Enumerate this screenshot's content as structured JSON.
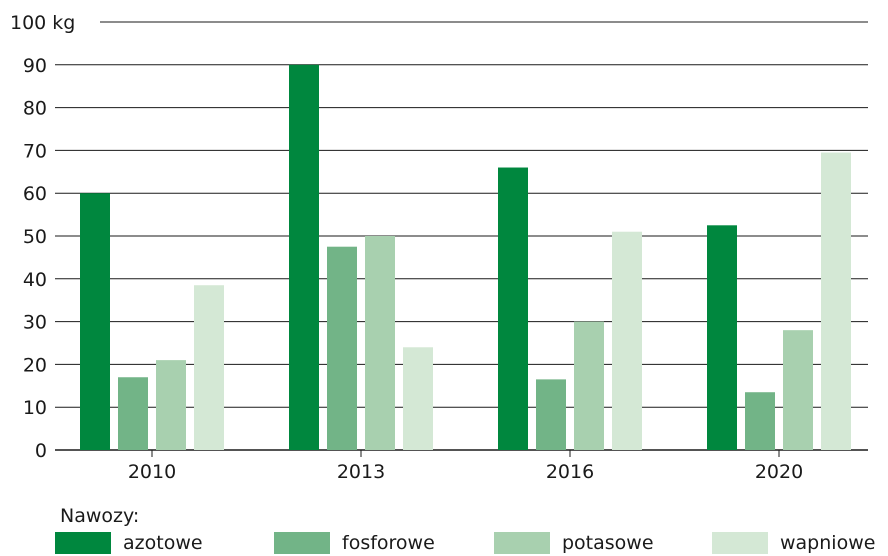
{
  "chart_data": {
    "type": "bar",
    "categories": [
      "2010",
      "2013",
      "2016",
      "2020"
    ],
    "series": [
      {
        "name": "azotowe",
        "color": "#00873e",
        "values": [
          60,
          90,
          66,
          52.5
        ]
      },
      {
        "name": "fosforowe",
        "color": "#72b487",
        "values": [
          17,
          47.5,
          16.5,
          13.5
        ]
      },
      {
        "name": "potasowe",
        "color": "#a8d0af",
        "values": [
          21,
          50,
          30,
          28
        ]
      },
      {
        "name": "wapniowe",
        "color": "#d4e8d5",
        "values": [
          38.5,
          24,
          51,
          69.5
        ]
      }
    ],
    "ylim": [
      0,
      100
    ],
    "yticks": [
      "0",
      "10",
      "20",
      "30",
      "40",
      "50",
      "60",
      "70",
      "80",
      "90",
      "100 kg"
    ],
    "grid": true,
    "title": "",
    "xlabel": "",
    "ylabel": ""
  },
  "legend": {
    "title": "Nawozy:",
    "items": [
      "azotowe",
      "fosforowe",
      "potasowe",
      "wapniowe"
    ]
  }
}
